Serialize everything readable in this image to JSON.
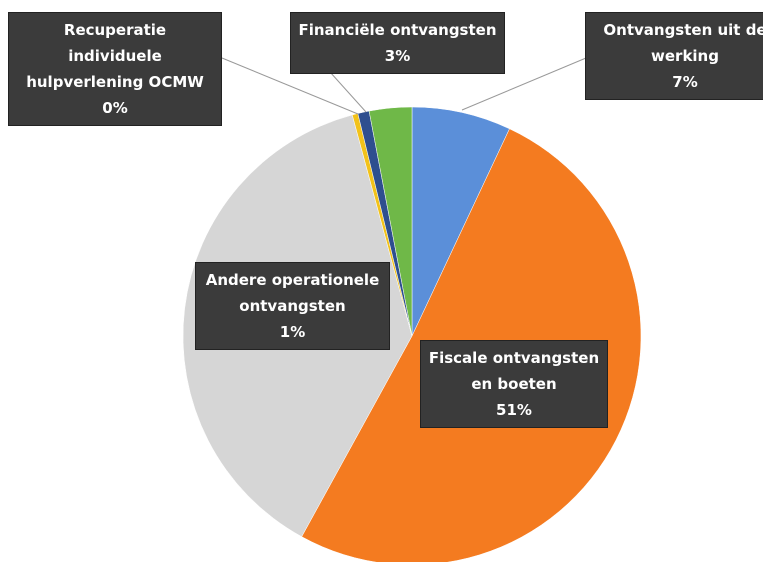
{
  "chart_data": {
    "type": "pie",
    "categories": [
      "Ontvangsten uit de werking",
      "Fiscale ontvangsten en boeten",
      null,
      "Recuperatie individuele hulpverlening OCMW",
      "Andere operationele ontvangsten",
      "Financiële ontvangsten"
    ],
    "values": [
      7,
      51,
      37.8,
      0.4,
      0.8,
      3
    ],
    "value_labels": [
      "7%",
      "51%",
      null,
      "0%",
      "1%",
      "3%"
    ],
    "colors": [
      "#5b8fd9",
      "#f47b20",
      "#d6d6d6",
      "#f2c21a",
      "#2e4f8f",
      "#6fb848"
    ]
  }
}
